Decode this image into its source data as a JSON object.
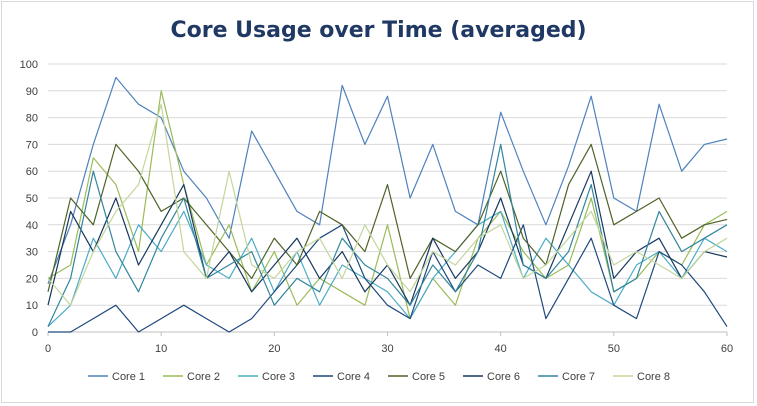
{
  "chart_data": {
    "type": "line",
    "title": "Core Usage over Time (averaged)",
    "xlabel": "",
    "ylabel": "",
    "xlim": [
      0,
      60
    ],
    "ylim": [
      0,
      100
    ],
    "x_ticks": [
      0,
      10,
      20,
      30,
      40,
      50,
      60
    ],
    "y_ticks": [
      0,
      10,
      20,
      30,
      40,
      50,
      60,
      70,
      80,
      90,
      100
    ],
    "grid": "horizontal",
    "legend_position": "bottom",
    "x": [
      0,
      2,
      4,
      6,
      8,
      10,
      12,
      14,
      16,
      18,
      20,
      22,
      24,
      26,
      28,
      30,
      32,
      34,
      36,
      38,
      40,
      42,
      44,
      46,
      48,
      50,
      52,
      54,
      56,
      58,
      60
    ],
    "series": [
      {
        "name": "Core 1",
        "color": "#4f81bd",
        "values": [
          18,
          40,
          70,
          95,
          85,
          80,
          60,
          50,
          35,
          75,
          60,
          45,
          40,
          92,
          70,
          88,
          50,
          70,
          45,
          40,
          82,
          60,
          40,
          62,
          88,
          50,
          45,
          85,
          60,
          70,
          72
        ]
      },
      {
        "name": "Core 2",
        "color": "#9bbb59",
        "values": [
          20,
          25,
          65,
          55,
          30,
          90,
          55,
          25,
          40,
          15,
          30,
          10,
          20,
          15,
          10,
          40,
          5,
          20,
          10,
          35,
          45,
          30,
          20,
          25,
          50,
          15,
          20,
          30,
          25,
          40,
          45
        ]
      },
      {
        "name": "Core 3",
        "color": "#4bacc6",
        "values": [
          2,
          10,
          35,
          20,
          40,
          30,
          45,
          25,
          20,
          35,
          15,
          30,
          10,
          25,
          20,
          15,
          5,
          20,
          30,
          40,
          45,
          20,
          35,
          25,
          15,
          10,
          25,
          30,
          20,
          35,
          30
        ]
      },
      {
        "name": "Core 4",
        "color": "#1f497d",
        "values": [
          0,
          0,
          5,
          10,
          0,
          5,
          10,
          5,
          0,
          5,
          15,
          25,
          35,
          40,
          20,
          10,
          5,
          30,
          15,
          25,
          20,
          40,
          5,
          20,
          35,
          10,
          5,
          30,
          25,
          15,
          2
        ]
      },
      {
        "name": "Core 5",
        "color": "#4f6228",
        "values": [
          15,
          50,
          40,
          70,
          60,
          45,
          50,
          40,
          30,
          20,
          35,
          25,
          45,
          40,
          30,
          55,
          20,
          35,
          30,
          40,
          60,
          35,
          25,
          55,
          70,
          40,
          45,
          50,
          35,
          40,
          42
        ]
      },
      {
        "name": "Core 6",
        "color": "#17375e",
        "values": [
          10,
          45,
          30,
          50,
          25,
          40,
          55,
          20,
          30,
          15,
          25,
          35,
          20,
          30,
          15,
          25,
          10,
          35,
          20,
          30,
          50,
          25,
          20,
          40,
          60,
          20,
          30,
          35,
          20,
          30,
          28
        ]
      },
      {
        "name": "Core 7",
        "color": "#31859c",
        "values": [
          2,
          20,
          60,
          30,
          15,
          35,
          50,
          20,
          25,
          30,
          10,
          20,
          15,
          35,
          25,
          20,
          10,
          25,
          15,
          30,
          70,
          25,
          20,
          30,
          55,
          15,
          20,
          45,
          30,
          35,
          40
        ]
      },
      {
        "name": "Core 8",
        "color": "#c3d69b",
        "values": [
          20,
          10,
          30,
          45,
          55,
          85,
          30,
          20,
          60,
          25,
          20,
          30,
          35,
          20,
          40,
          25,
          15,
          30,
          25,
          35,
          40,
          20,
          25,
          35,
          45,
          25,
          30,
          25,
          20,
          30,
          35
        ]
      }
    ]
  }
}
